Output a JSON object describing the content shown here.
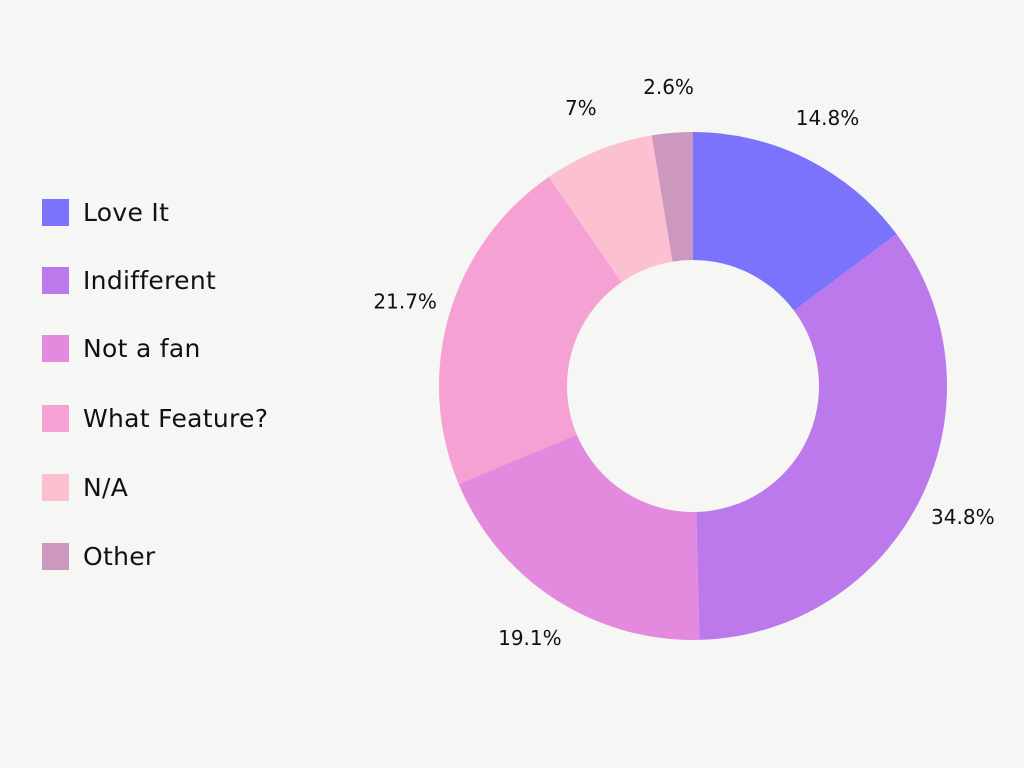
{
  "chart_data": {
    "type": "pie",
    "variant": "donut",
    "title": "",
    "categories": [
      "Love It",
      "Indifferent",
      "Not a fan",
      "What Feature?",
      "N/A",
      "Other"
    ],
    "values": [
      14.8,
      34.8,
      19.1,
      21.7,
      7.0,
      2.6
    ],
    "value_labels": [
      "14.8%",
      "34.8%",
      "19.1%",
      "21.7%",
      "7%",
      "2.6%"
    ],
    "colors": [
      "#7b73fc",
      "#bc79ec",
      "#e48ade",
      "#f5a1d3",
      "#fbc1d1",
      "#cd98bd"
    ],
    "legend_position": "left",
    "start_angle": "top",
    "direction": "clockwise"
  }
}
